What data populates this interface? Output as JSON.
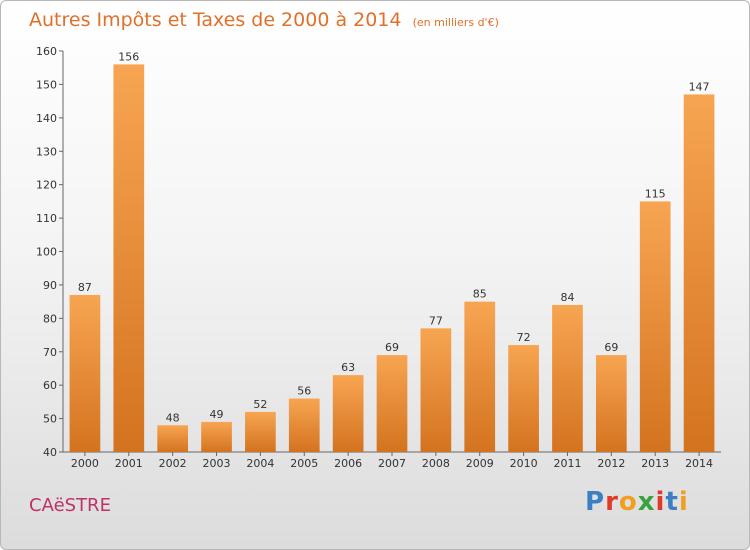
{
  "header": {
    "title": "Autres Impôts et Taxes de 2000 à 2014",
    "subtitle": "(en milliers d'€)"
  },
  "footer": {
    "commune": "CAëSTRE",
    "logo_text": "Proxiti"
  },
  "colors": {
    "title": "#e0702a",
    "commune": "#c0306a",
    "bar_top": "#f7a552",
    "bar_bottom": "#d4731f",
    "logo": [
      "#3d7fc4",
      "#e03a2a",
      "#f0a020",
      "#3aa040",
      "#e03a2a",
      "#3d7fc4",
      "#f0a020"
    ]
  },
  "chart_data": {
    "type": "bar",
    "categories": [
      "2000",
      "2001",
      "2002",
      "2003",
      "2004",
      "2005",
      "2006",
      "2007",
      "2008",
      "2009",
      "2010",
      "2011",
      "2012",
      "2013",
      "2014"
    ],
    "values": [
      87,
      156,
      48,
      49,
      52,
      56,
      63,
      69,
      77,
      85,
      72,
      84,
      69,
      115,
      147
    ],
    "y_ticks": [
      40,
      50,
      60,
      70,
      80,
      90,
      100,
      110,
      120,
      130,
      140,
      150,
      160
    ],
    "ylim": [
      40,
      160
    ],
    "grid": false,
    "legend": "none"
  }
}
